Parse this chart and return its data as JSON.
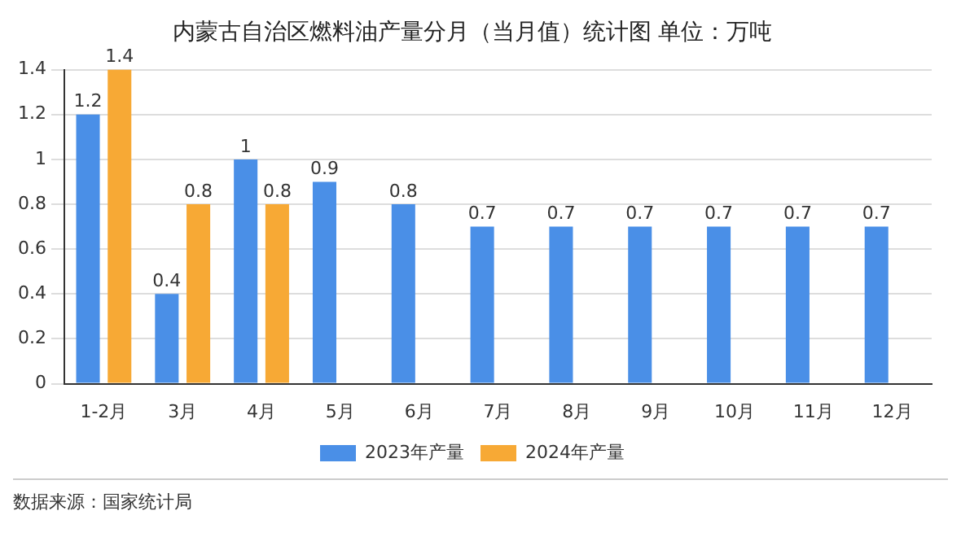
{
  "chart_data": {
    "type": "bar",
    "title": "内蒙古自治区燃料油产量分月（当月值）统计图 单位：万吨",
    "categories": [
      "1-2月",
      "3月",
      "4月",
      "5月",
      "6月",
      "7月",
      "8月",
      "9月",
      "10月",
      "11月",
      "12月"
    ],
    "series": [
      {
        "name": "2023年产量",
        "color": "#4a8fe7",
        "values": [
          1.2,
          0.4,
          1,
          0.9,
          0.8,
          0.7,
          0.7,
          0.7,
          0.7,
          0.7,
          0.7
        ]
      },
      {
        "name": "2024年产量",
        "color": "#f7a935",
        "values": [
          1.4,
          0.8,
          0.8,
          null,
          null,
          null,
          null,
          null,
          null,
          null,
          null
        ]
      }
    ],
    "ylim": [
      0,
      1.4
    ],
    "yticks": [
      0,
      0.2,
      0.4,
      0.6,
      0.8,
      1,
      1.2,
      1.4
    ],
    "grid": "y",
    "legend": "bottom",
    "data_labels": true,
    "annotations": [
      "数据来源：国家统计局"
    ]
  }
}
